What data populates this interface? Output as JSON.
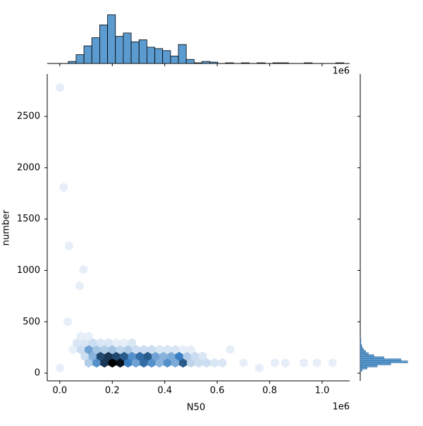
{
  "chart_data": {
    "type": "hexbin",
    "x_label": "N50",
    "y_label": "number",
    "x_offset_label": "1e6",
    "xlim": [
      -0.048,
      1.105
    ],
    "ylim": [
      -75,
      2912
    ],
    "xticks": [
      {
        "value": 0,
        "label": "0.0"
      },
      {
        "value": 0.2,
        "label": "0.2"
      },
      {
        "value": 0.4,
        "label": "0.4"
      },
      {
        "value": 0.6,
        "label": "0.6"
      },
      {
        "value": 0.8,
        "label": "0.8"
      },
      {
        "value": 1.0,
        "label": "1.0"
      }
    ],
    "yticks": [
      0,
      500,
      1000,
      1500,
      2000,
      2500
    ],
    "cmap": [
      "#f3f7fc",
      "#3a7fc2",
      "#000000"
    ],
    "hexes": {
      "x": [
        0.11,
        0.14,
        0.17,
        0.2,
        0.23,
        0.26,
        0.29,
        0.32,
        0.35,
        0.38,
        0.41,
        0.44,
        0.47,
        0.5,
        0.53,
        0.56,
        0.59,
        0.62,
        0.095,
        0.125,
        0.155,
        0.185,
        0.215,
        0.245,
        0.275,
        0.305,
        0.335,
        0.365,
        0.395,
        0.425,
        0.455,
        0.485,
        0.515,
        0.545,
        0.05,
        0.08,
        0.11,
        0.14,
        0.17,
        0.2,
        0.23,
        0.26,
        0.29,
        0.32,
        0.35,
        0.38,
        0.41,
        0.44,
        0.47,
        0.5,
        0.065,
        0.095,
        0.125,
        0.155,
        0.185,
        0.215,
        0.245,
        0.275,
        0.08,
        0.11,
        0.0,
        0.015,
        0.035,
        0.09,
        0.075,
        0.03,
        0.0,
        0.7,
        0.76,
        0.82,
        0.86,
        0.93,
        0.98,
        1.04,
        0.65
      ],
      "y": [
        100,
        100,
        100,
        100,
        100,
        100,
        100,
        100,
        100,
        100,
        100,
        100,
        100,
        100,
        100,
        100,
        100,
        100,
        165,
        165,
        165,
        165,
        165,
        165,
        165,
        165,
        165,
        165,
        165,
        165,
        165,
        165,
        165,
        165,
        230,
        230,
        230,
        230,
        230,
        230,
        230,
        230,
        230,
        230,
        230,
        230,
        230,
        230,
        230,
        230,
        295,
        295,
        295,
        295,
        295,
        295,
        295,
        295,
        360,
        360,
        2780,
        1810,
        1240,
        1010,
        850,
        500,
        50,
        100,
        50,
        100,
        100,
        100,
        100,
        100,
        230
      ],
      "counts": [
        5,
        12,
        22,
        28,
        26,
        14,
        10,
        16,
        12,
        8,
        12,
        9,
        18,
        4,
        3,
        3,
        2,
        2,
        3,
        8,
        20,
        22,
        20,
        18,
        12,
        16,
        18,
        10,
        8,
        9,
        14,
        5,
        3,
        2,
        1,
        3,
        10,
        6,
        5,
        6,
        4,
        5,
        3,
        3,
        3,
        2,
        2,
        2,
        1,
        1,
        2,
        2,
        3,
        2,
        2,
        1,
        1,
        2,
        1,
        1,
        1,
        1,
        1,
        1,
        1,
        1,
        1,
        1,
        1,
        1,
        1,
        1,
        1,
        1,
        1
      ]
    },
    "x_hist": {
      "color": "#5b9bd0",
      "ylim": [
        0,
        75
      ],
      "bins": [
        0.032,
        0.062,
        0.092,
        0.122,
        0.152,
        0.182,
        0.212,
        0.242,
        0.272,
        0.302,
        0.332,
        0.362,
        0.392,
        0.422,
        0.452,
        0.482,
        0.512,
        0.542,
        0.572,
        0.602,
        0.632,
        0.662,
        0.692,
        0.722,
        0.752,
        0.782,
        0.812,
        0.842,
        0.872,
        0.902,
        0.932,
        0.962,
        0.992,
        1.022,
        1.052,
        1.082
      ],
      "counts": [
        3,
        13,
        26,
        38,
        57,
        72,
        40,
        45,
        32,
        35,
        24,
        22,
        19,
        11,
        28,
        6,
        1,
        3,
        2,
        0,
        1,
        0,
        1,
        0,
        1,
        0,
        1,
        1,
        0,
        0,
        1,
        0,
        0,
        0,
        1
      ]
    },
    "y_hist": {
      "color": "#5b9bd0",
      "xlim": [
        0,
        75
      ],
      "bins": [
        20,
        40,
        60,
        80,
        100,
        120,
        140,
        160,
        180,
        200,
        220,
        240,
        260,
        280,
        300,
        320,
        340
      ],
      "counts": [
        3,
        10,
        25,
        45,
        70,
        60,
        35,
        20,
        12,
        8,
        5,
        3,
        2,
        1,
        1,
        1
      ]
    }
  }
}
